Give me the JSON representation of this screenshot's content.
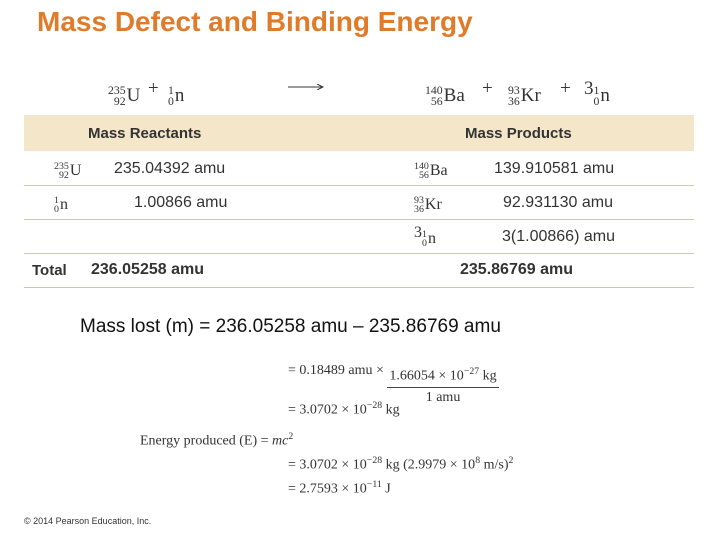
{
  "title": "Mass Defect and Binding Energy",
  "equation": {
    "u235": {
      "mass": "235",
      "atomic": "92",
      "symbol": "U"
    },
    "plus1": "+",
    "n_in": {
      "mass": "1",
      "atomic": "0",
      "symbol": "n"
    },
    "ba": {
      "mass": "140",
      "atomic": "56",
      "symbol": "Ba"
    },
    "plus2": "+",
    "kr": {
      "mass": "93",
      "atomic": "36",
      "symbol": "Kr"
    },
    "plus3": "+",
    "coef": "3",
    "n_out": {
      "mass": "1",
      "atomic": "0",
      "symbol": "n"
    }
  },
  "table": {
    "header_reactants": "Mass Reactants",
    "header_products": "Mass Products",
    "rows": [
      {
        "r_mass": "235",
        "r_atomic": "92",
        "r_symbol": "U",
        "r_value": "235.04392 amu",
        "p_mass": "140",
        "p_atomic": "56",
        "p_symbol": "Ba",
        "p_value": "139.910581 amu"
      },
      {
        "r_mass": "1",
        "r_atomic": "0",
        "r_symbol": "n",
        "r_value": "1.00866 amu",
        "p_mass": "93",
        "p_atomic": "36",
        "p_symbol": "Kr",
        "p_value": "92.931130 amu"
      },
      {
        "p_coef": "3",
        "p_mass": "1",
        "p_atomic": "0",
        "p_symbol": "n",
        "p_value": "3(1.00866) amu"
      }
    ],
    "total_label": "Total",
    "total_reactants": "236.05258 amu",
    "total_products": "235.86769 amu"
  },
  "mass_lost": "Mass lost (m) = 236.05258 amu – 235.86769 amu",
  "calc": {
    "line1_prefix": "= 0.18489 amu ×",
    "line1_num": "1.66054 × 10",
    "line1_num_exp": "−27",
    "line1_num_unit": "kg",
    "line1_den": "1 amu",
    "line2": "= 3.0702 × 10",
    "line2_exp": "−28",
    "line2_unit": "kg",
    "energy_label": "Energy produced (E) =",
    "energy_formula": "mc",
    "energy_formula_exp": "2",
    "line4": "= 3.0702 × 10",
    "line4_exp": "−28",
    "line4_mid": "kg (2.9979 × 10",
    "line4_exp2": "8",
    "line4_unit": "m/s)",
    "line4_exp3": "2",
    "line5": "= 2.7593 × 10",
    "line5_exp": "−11",
    "line5_unit": "J"
  },
  "copyright": "© 2014 Pearson Education, Inc.",
  "colors": {
    "title": "#e07b2a",
    "table_header_bg": "#f4e6c8"
  }
}
